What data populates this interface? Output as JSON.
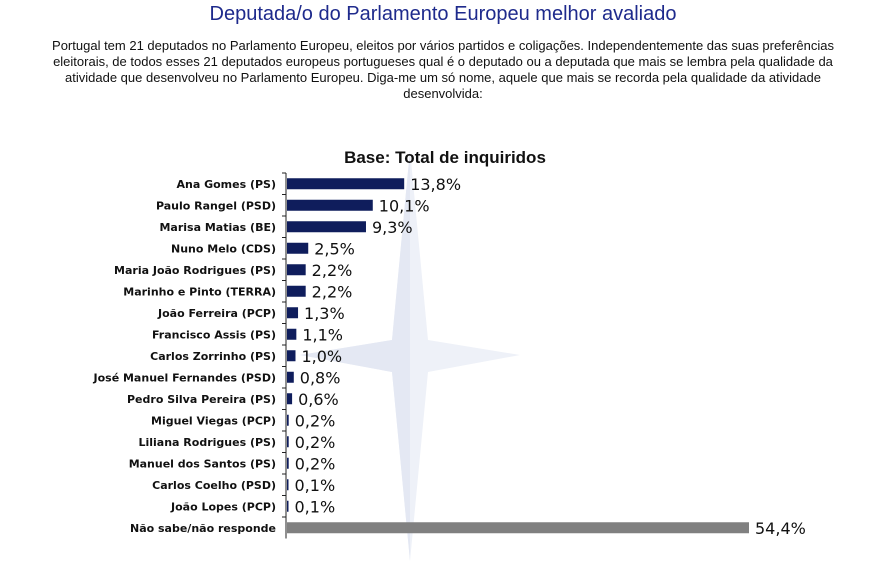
{
  "title": "Deputada/o do Parlamento Europeu melhor avaliado",
  "description": "Portugal tem 21 deputados no Parlamento Europeu, eleitos por vários partidos e coligações. Independentemente das suas preferências eleitorais, de todos esses 21 deputados europeus portugueses qual é o deputado ou a deputada que mais se lembra pela qualidade da atividade que desenvolveu no Parlamento Europeu. Diga-me um só nome, aquele que mais se recorda pela qualidade da atividade desenvolvida:",
  "colors": {
    "title": "#1e2a8c",
    "bar": "#0f1d5c",
    "bar_other": "#808080"
  },
  "chart_data": {
    "type": "bar",
    "orientation": "horizontal",
    "title": "Base: Total de inquiridos",
    "categories": [
      "Ana Gomes (PS)",
      "Paulo Rangel (PSD)",
      "Marisa Matias (BE)",
      "Nuno Melo (CDS)",
      "Maria João Rodrigues (PS)",
      "Marinho e Pinto (TERRA)",
      "João Ferreira (PCP)",
      "Francisco Assis (PS)",
      "Carlos Zorrinho (PS)",
      "José Manuel Fernandes (PSD)",
      "Pedro Silva Pereira (PS)",
      "Miguel Viegas (PCP)",
      "Liliana Rodrigues (PS)",
      "Manuel dos Santos (PS)",
      "Carlos Coelho (PSD)",
      "João Lopes (PCP)",
      "Não sabe/não responde"
    ],
    "values": [
      13.8,
      10.1,
      9.3,
      2.5,
      2.2,
      2.2,
      1.3,
      1.1,
      1.0,
      0.8,
      0.6,
      0.2,
      0.2,
      0.2,
      0.1,
      0.1,
      54.4
    ],
    "labels": [
      "13,8%",
      "10,1%",
      "9,3%",
      "2,5%",
      "2,2%",
      "2,2%",
      "1,3%",
      "1,1%",
      "1,0%",
      "0,8%",
      "0,6%",
      "0,2%",
      "0,2%",
      "0,2%",
      "0,1%",
      "0,1%",
      "54,4%"
    ],
    "xlim": [
      0,
      54.4
    ],
    "grid": false,
    "legend": "none"
  }
}
